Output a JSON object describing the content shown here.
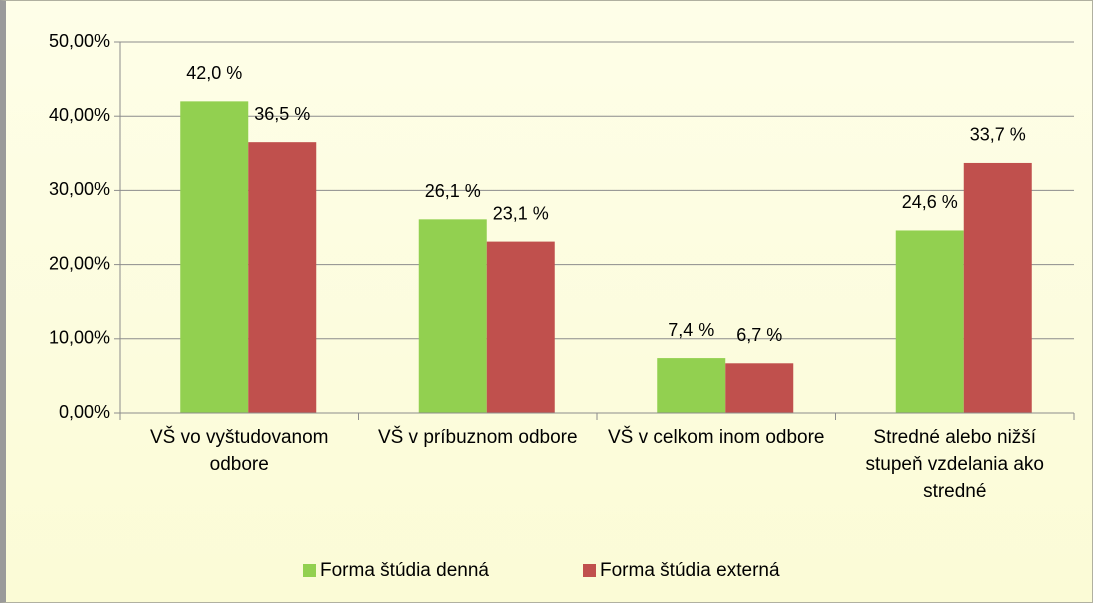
{
  "chart_data": {
    "type": "bar",
    "categories": [
      "VŠ vo vyštudovanom odbore",
      "VŠ v príbuznom odbore",
      "VŠ v celkom inom odbore",
      "Stredné alebo nižší stupeň vzdelania ako stredné"
    ],
    "series": [
      {
        "name": "Forma štúdia denná",
        "color": "#92d050",
        "values": [
          42.0,
          26.1,
          7.4,
          24.6
        ],
        "value_labels": [
          "42,0 %",
          "26,1 %",
          "7,4 %",
          "24,6 %"
        ]
      },
      {
        "name": "Forma štúdia externá",
        "color": "#c0504d",
        "values": [
          36.5,
          23.1,
          6.7,
          33.7
        ],
        "value_labels": [
          "36,5 %",
          "23,1 %",
          "6,7 %",
          "33,7 %"
        ]
      }
    ],
    "ylim": [
      0,
      50
    ],
    "yticks": [
      {
        "value": 0,
        "label": "0,00%"
      },
      {
        "value": 10,
        "label": "10,00%"
      },
      {
        "value": 20,
        "label": "20,00%"
      },
      {
        "value": 30,
        "label": "30,00%"
      },
      {
        "value": 40,
        "label": "40,00%"
      },
      {
        "value": 50,
        "label": "50,00%"
      }
    ],
    "grid": true,
    "legend": "bottom"
  }
}
